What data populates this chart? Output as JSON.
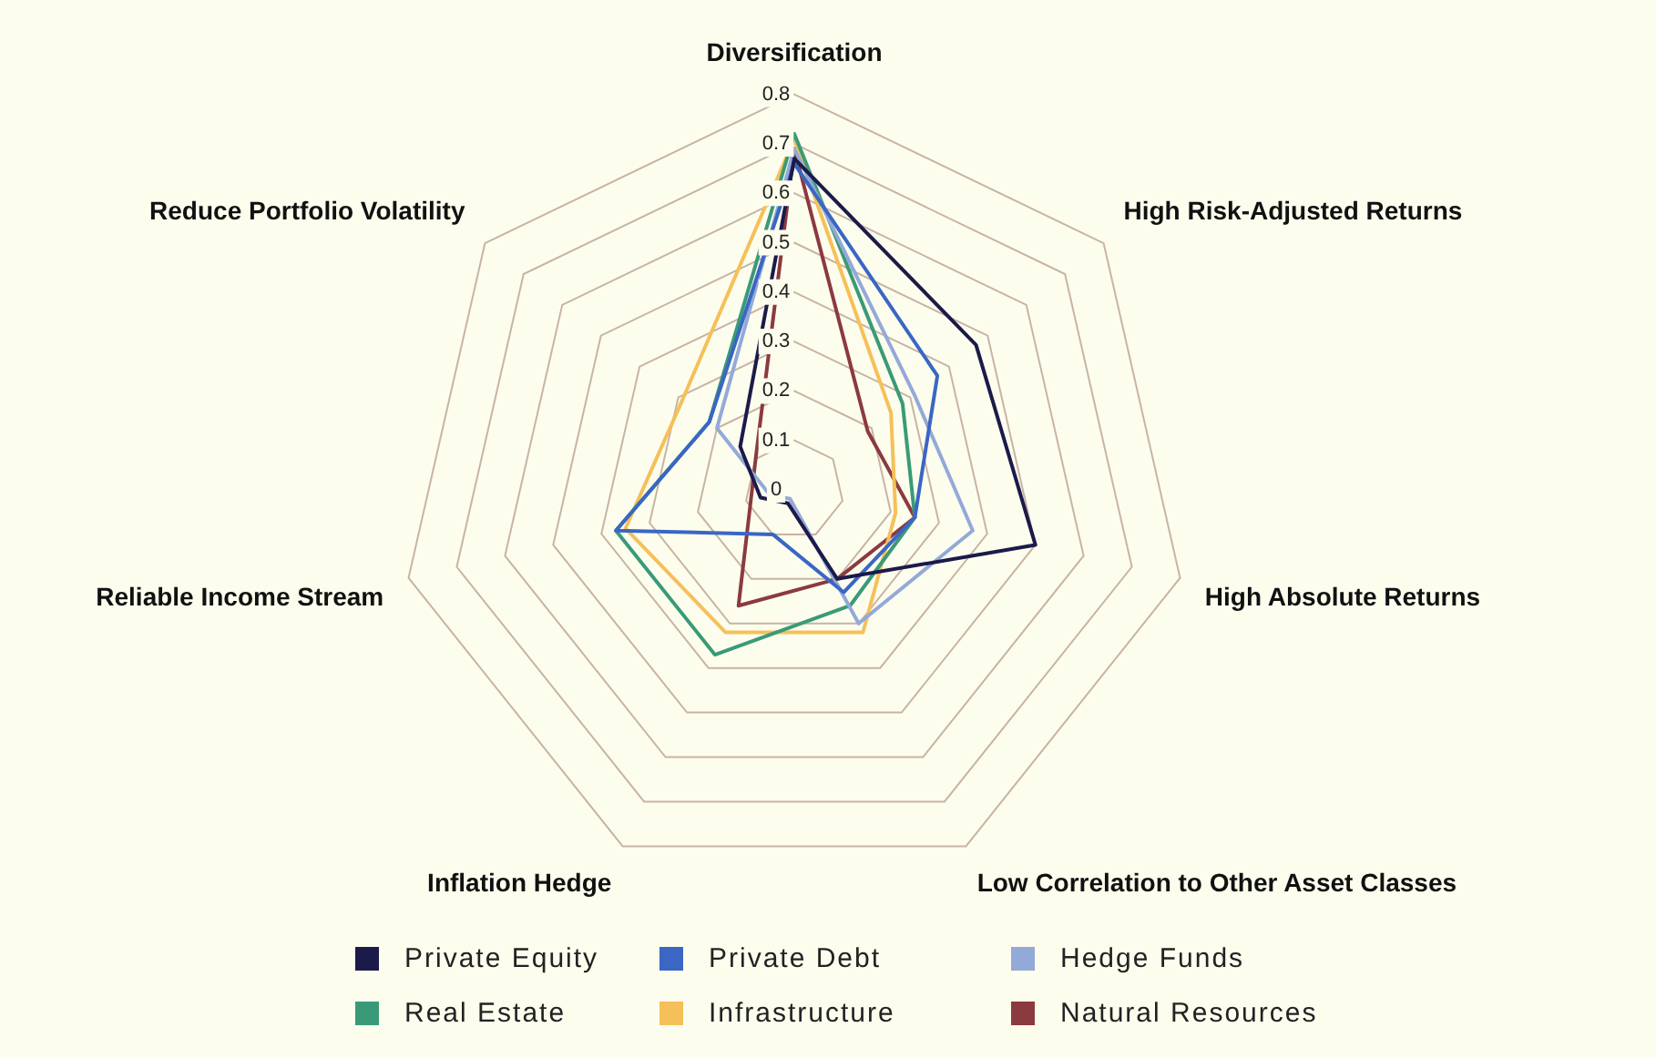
{
  "chart_data": {
    "type": "radar",
    "categories": [
      "Diversification",
      "High Risk-Adjusted Returns",
      "High Absolute Returns",
      "Low Correlation to Other Asset Classes",
      "Inflation Hedge",
      "Reliable Income Stream",
      "Reduce Portfolio Volatility"
    ],
    "series": [
      {
        "name": "Private Equity",
        "color": "#1c1a4a",
        "values": [
          0.67,
          0.47,
          0.5,
          0.2,
          0.03,
          0.07,
          0.14
        ]
      },
      {
        "name": "Private Debt",
        "color": "#3a66c4",
        "values": [
          0.66,
          0.37,
          0.25,
          0.23,
          0.1,
          0.37,
          0.22
        ]
      },
      {
        "name": "Hedge Funds",
        "color": "#93a9d8",
        "values": [
          0.69,
          0.31,
          0.37,
          0.3,
          0.02,
          0.05,
          0.2
        ]
      },
      {
        "name": "Real Estate",
        "color": "#3a9a78",
        "values": [
          0.72,
          0.28,
          0.25,
          0.26,
          0.37,
          0.37,
          0.22
        ]
      },
      {
        "name": "Infrastructure",
        "color": "#f5c05a",
        "values": [
          0.71,
          0.25,
          0.21,
          0.32,
          0.32,
          0.35,
          0.29
        ]
      },
      {
        "name": "Natural Resources",
        "color": "#8b3a3f",
        "values": [
          0.69,
          0.19,
          0.25,
          0.2,
          0.26,
          0.09,
          0.1
        ]
      }
    ],
    "ylim": [
      0,
      0.8
    ],
    "yticks": [
      0,
      0.1,
      0.2,
      0.3,
      0.4,
      0.5,
      0.6,
      0.7,
      0.8
    ],
    "grid": true,
    "legend": "bottom",
    "marker": "none"
  }
}
